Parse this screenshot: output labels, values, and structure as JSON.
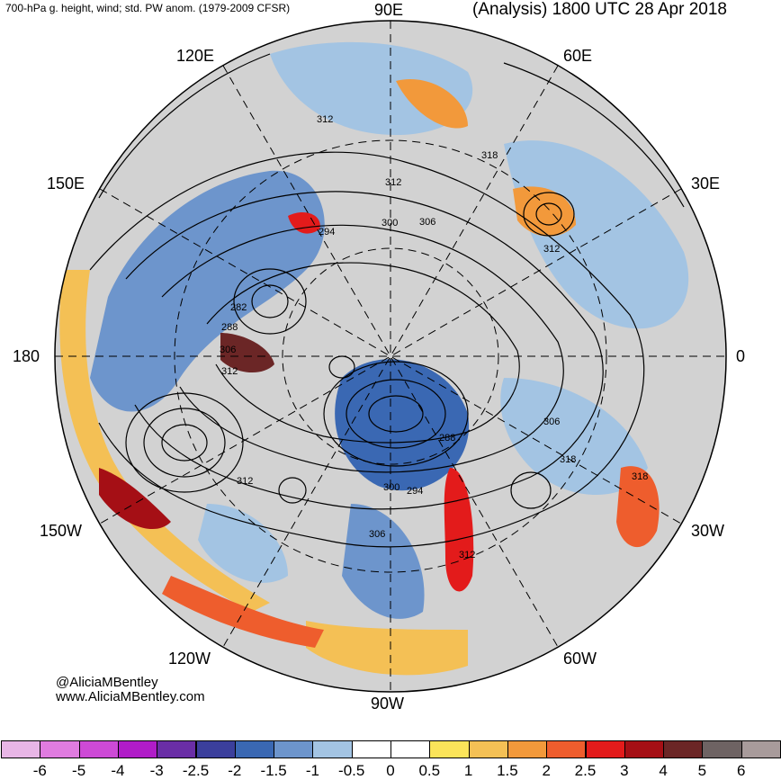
{
  "header": {
    "left_title": "700-hPa g. height, wind; std. PW anom. (1979-2009 CFSR)",
    "right_title": "(Analysis) 1800 UTC 28 Apr 2018"
  },
  "longitude_labels": {
    "e90": "90E",
    "e120": "120E",
    "e60": "60E",
    "e150": "150E",
    "e30": "30E",
    "lon180": "180",
    "lon0": "0",
    "w150": "150W",
    "w30": "30W",
    "w120": "120W",
    "w60": "60W",
    "w90": "90W"
  },
  "height_labels": [
    "312",
    "318",
    "312",
    "300",
    "306",
    "294",
    "282",
    "288",
    "306",
    "312",
    "288",
    "312",
    "300",
    "294",
    "306",
    "312",
    "318",
    "318",
    "312",
    "306"
  ],
  "credit": {
    "handle": "@AliciaMBentley",
    "site": "www.AliciaMBentley.com"
  },
  "colorbar": {
    "colors": [
      "#e8b6e6",
      "#e07ce0",
      "#cd4ad6",
      "#b01cc8",
      "#6a2ea6",
      "#3b3f9c",
      "#3a68b3",
      "#6d95cc",
      "#a3c4e3",
      "#ffffff",
      "#ffffff",
      "#fbe45a",
      "#f4c055",
      "#f2993b",
      "#ee5d2d",
      "#e31b1b",
      "#a50f15",
      "#6b2626",
      "#6e6363",
      "#a89b9b"
    ],
    "ticks": [
      "-6",
      "-5",
      "-4",
      "-3",
      "-2.5",
      "-2",
      "-1.5",
      "-1",
      "-0.5",
      "0",
      "0.5",
      "1",
      "1.5",
      "2",
      "2.5",
      "3",
      "4",
      "5",
      "6"
    ]
  }
}
